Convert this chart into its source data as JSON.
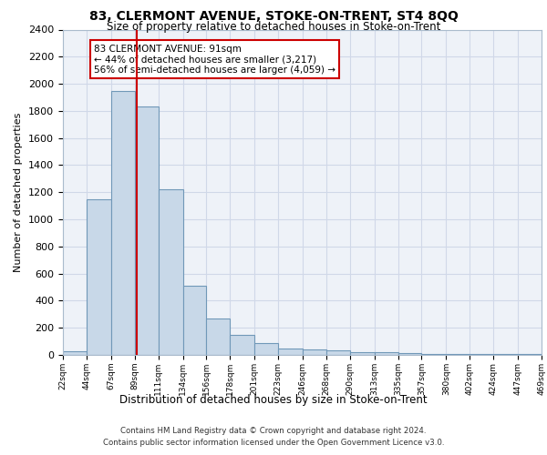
{
  "title": "83, CLERMONT AVENUE, STOKE-ON-TRENT, ST4 8QQ",
  "subtitle": "Size of property relative to detached houses in Stoke-on-Trent",
  "xlabel": "Distribution of detached houses by size in Stoke-on-Trent",
  "ylabel": "Number of detached properties",
  "bin_edges": [
    22,
    44,
    67,
    89,
    111,
    134,
    156,
    178,
    201,
    223,
    246,
    268,
    290,
    313,
    335,
    357,
    380,
    402,
    424,
    447,
    469
  ],
  "bar_heights": [
    30,
    1150,
    1950,
    1830,
    1220,
    510,
    270,
    150,
    85,
    45,
    40,
    35,
    20,
    20,
    15,
    10,
    8,
    5,
    5,
    5
  ],
  "bar_color": "#c8d8e8",
  "bar_edge_color": "#7098b8",
  "property_size": 91,
  "red_line_color": "#cc0000",
  "annotation_text": "83 CLERMONT AVENUE: 91sqm\n← 44% of detached houses are smaller (3,217)\n56% of semi-detached houses are larger (4,059) →",
  "annotation_box_color": "white",
  "annotation_box_edge": "#cc0000",
  "grid_color": "#d0d8e8",
  "background_color": "#eef2f8",
  "footer_line1": "Contains HM Land Registry data © Crown copyright and database right 2024.",
  "footer_line2": "Contains public sector information licensed under the Open Government Licence v3.0.",
  "ylim": [
    0,
    2400
  ],
  "yticks": [
    0,
    200,
    400,
    600,
    800,
    1000,
    1200,
    1400,
    1600,
    1800,
    2000,
    2200,
    2400
  ]
}
